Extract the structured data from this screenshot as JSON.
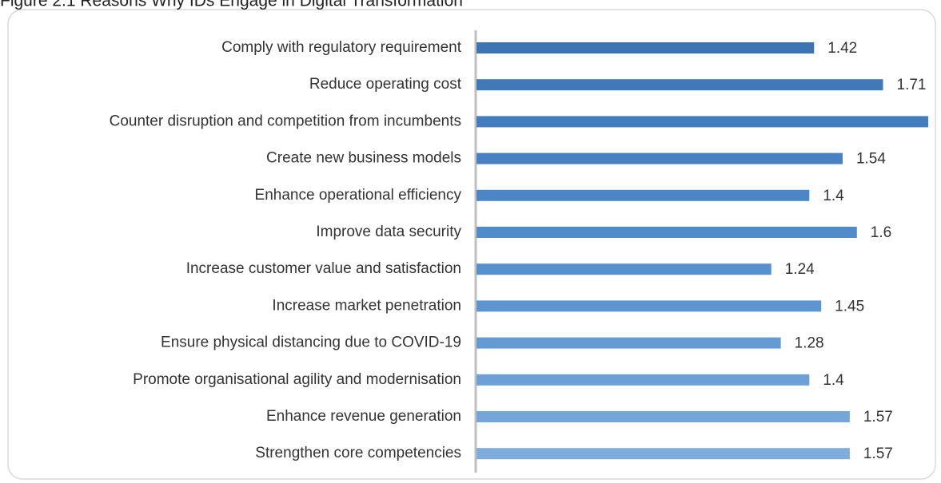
{
  "chart_data": {
    "type": "bar",
    "orientation": "horizontal",
    "title": "Figure 2.1 Reasons Why IDs Engage in Digital Transformation",
    "categories": [
      "Comply with regulatory requirement",
      "Reduce operating cost",
      "Counter disruption and competition from incumbents",
      "Create new business models",
      "Enhance operational efficiency",
      "Improve data security",
      "Increase customer value and satisfaction",
      "Increase market penetration",
      "Ensure physical distancing due to COVID-19",
      "Promote organisational agility and modernisation",
      "Enhance revenue generation",
      "Strengthen core competencies"
    ],
    "values": [
      1.42,
      1.71,
      1.9,
      1.54,
      1.4,
      1.6,
      1.24,
      1.45,
      1.28,
      1.4,
      1.57,
      1.57
    ],
    "colors": [
      "#3d74b3",
      "#4078b8",
      "#437dbd",
      "#4881c2",
      "#4d86c6",
      "#528bca",
      "#5890cd",
      "#5e95d1",
      "#659bd4",
      "#6ca0d7",
      "#74a6da",
      "#7dacdd"
    ]
  }
}
